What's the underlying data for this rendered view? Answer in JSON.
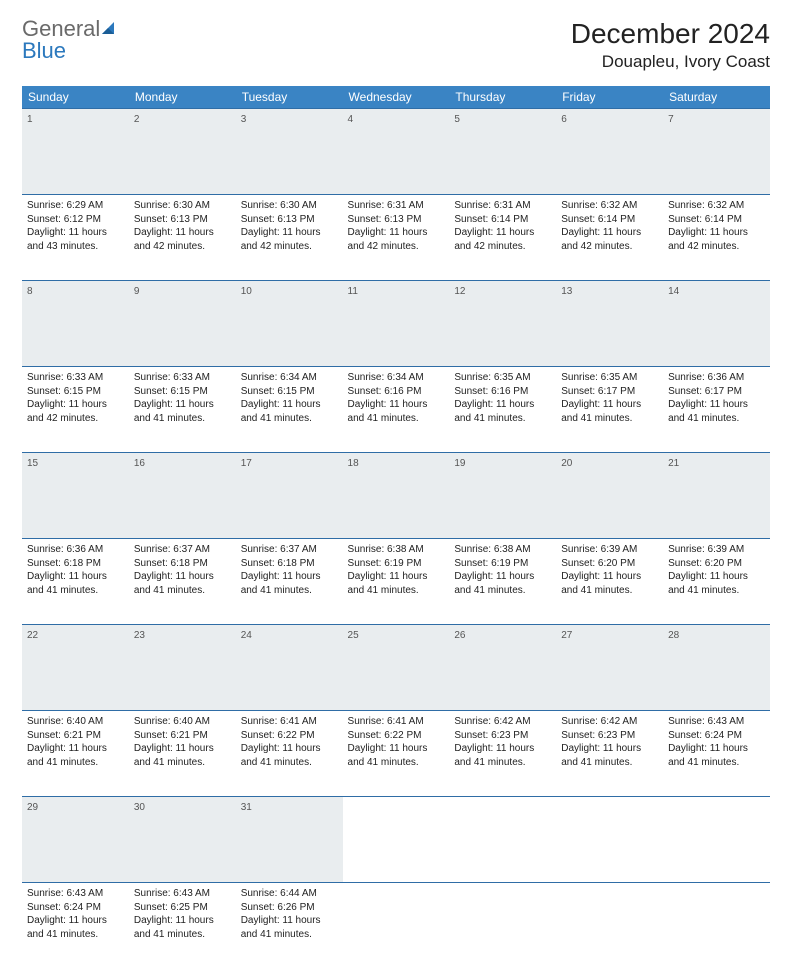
{
  "brand": {
    "word1": "General",
    "word2": "Blue"
  },
  "title": "December 2024",
  "location": "Douapleu, Ivory Coast",
  "colors": {
    "header_bg": "#3a84c4",
    "header_text": "#ffffff",
    "daynum_bg": "#e9edef",
    "border": "#2f6da6",
    "logo_gray": "#6a6a6a",
    "logo_blue": "#2b78bd"
  },
  "dayNames": [
    "Sunday",
    "Monday",
    "Tuesday",
    "Wednesday",
    "Thursday",
    "Friday",
    "Saturday"
  ],
  "layout": {
    "columns": 7,
    "rows": 5
  },
  "weeks": [
    [
      {
        "num": "1",
        "sunrise": "Sunrise: 6:29 AM",
        "sunset": "Sunset: 6:12 PM",
        "daylight": "Daylight: 11 hours and 43 minutes."
      },
      {
        "num": "2",
        "sunrise": "Sunrise: 6:30 AM",
        "sunset": "Sunset: 6:13 PM",
        "daylight": "Daylight: 11 hours and 42 minutes."
      },
      {
        "num": "3",
        "sunrise": "Sunrise: 6:30 AM",
        "sunset": "Sunset: 6:13 PM",
        "daylight": "Daylight: 11 hours and 42 minutes."
      },
      {
        "num": "4",
        "sunrise": "Sunrise: 6:31 AM",
        "sunset": "Sunset: 6:13 PM",
        "daylight": "Daylight: 11 hours and 42 minutes."
      },
      {
        "num": "5",
        "sunrise": "Sunrise: 6:31 AM",
        "sunset": "Sunset: 6:14 PM",
        "daylight": "Daylight: 11 hours and 42 minutes."
      },
      {
        "num": "6",
        "sunrise": "Sunrise: 6:32 AM",
        "sunset": "Sunset: 6:14 PM",
        "daylight": "Daylight: 11 hours and 42 minutes."
      },
      {
        "num": "7",
        "sunrise": "Sunrise: 6:32 AM",
        "sunset": "Sunset: 6:14 PM",
        "daylight": "Daylight: 11 hours and 42 minutes."
      }
    ],
    [
      {
        "num": "8",
        "sunrise": "Sunrise: 6:33 AM",
        "sunset": "Sunset: 6:15 PM",
        "daylight": "Daylight: 11 hours and 42 minutes."
      },
      {
        "num": "9",
        "sunrise": "Sunrise: 6:33 AM",
        "sunset": "Sunset: 6:15 PM",
        "daylight": "Daylight: 11 hours and 41 minutes."
      },
      {
        "num": "10",
        "sunrise": "Sunrise: 6:34 AM",
        "sunset": "Sunset: 6:15 PM",
        "daylight": "Daylight: 11 hours and 41 minutes."
      },
      {
        "num": "11",
        "sunrise": "Sunrise: 6:34 AM",
        "sunset": "Sunset: 6:16 PM",
        "daylight": "Daylight: 11 hours and 41 minutes."
      },
      {
        "num": "12",
        "sunrise": "Sunrise: 6:35 AM",
        "sunset": "Sunset: 6:16 PM",
        "daylight": "Daylight: 11 hours and 41 minutes."
      },
      {
        "num": "13",
        "sunrise": "Sunrise: 6:35 AM",
        "sunset": "Sunset: 6:17 PM",
        "daylight": "Daylight: 11 hours and 41 minutes."
      },
      {
        "num": "14",
        "sunrise": "Sunrise: 6:36 AM",
        "sunset": "Sunset: 6:17 PM",
        "daylight": "Daylight: 11 hours and 41 minutes."
      }
    ],
    [
      {
        "num": "15",
        "sunrise": "Sunrise: 6:36 AM",
        "sunset": "Sunset: 6:18 PM",
        "daylight": "Daylight: 11 hours and 41 minutes."
      },
      {
        "num": "16",
        "sunrise": "Sunrise: 6:37 AM",
        "sunset": "Sunset: 6:18 PM",
        "daylight": "Daylight: 11 hours and 41 minutes."
      },
      {
        "num": "17",
        "sunrise": "Sunrise: 6:37 AM",
        "sunset": "Sunset: 6:18 PM",
        "daylight": "Daylight: 11 hours and 41 minutes."
      },
      {
        "num": "18",
        "sunrise": "Sunrise: 6:38 AM",
        "sunset": "Sunset: 6:19 PM",
        "daylight": "Daylight: 11 hours and 41 minutes."
      },
      {
        "num": "19",
        "sunrise": "Sunrise: 6:38 AM",
        "sunset": "Sunset: 6:19 PM",
        "daylight": "Daylight: 11 hours and 41 minutes."
      },
      {
        "num": "20",
        "sunrise": "Sunrise: 6:39 AM",
        "sunset": "Sunset: 6:20 PM",
        "daylight": "Daylight: 11 hours and 41 minutes."
      },
      {
        "num": "21",
        "sunrise": "Sunrise: 6:39 AM",
        "sunset": "Sunset: 6:20 PM",
        "daylight": "Daylight: 11 hours and 41 minutes."
      }
    ],
    [
      {
        "num": "22",
        "sunrise": "Sunrise: 6:40 AM",
        "sunset": "Sunset: 6:21 PM",
        "daylight": "Daylight: 11 hours and 41 minutes."
      },
      {
        "num": "23",
        "sunrise": "Sunrise: 6:40 AM",
        "sunset": "Sunset: 6:21 PM",
        "daylight": "Daylight: 11 hours and 41 minutes."
      },
      {
        "num": "24",
        "sunrise": "Sunrise: 6:41 AM",
        "sunset": "Sunset: 6:22 PM",
        "daylight": "Daylight: 11 hours and 41 minutes."
      },
      {
        "num": "25",
        "sunrise": "Sunrise: 6:41 AM",
        "sunset": "Sunset: 6:22 PM",
        "daylight": "Daylight: 11 hours and 41 minutes."
      },
      {
        "num": "26",
        "sunrise": "Sunrise: 6:42 AM",
        "sunset": "Sunset: 6:23 PM",
        "daylight": "Daylight: 11 hours and 41 minutes."
      },
      {
        "num": "27",
        "sunrise": "Sunrise: 6:42 AM",
        "sunset": "Sunset: 6:23 PM",
        "daylight": "Daylight: 11 hours and 41 minutes."
      },
      {
        "num": "28",
        "sunrise": "Sunrise: 6:43 AM",
        "sunset": "Sunset: 6:24 PM",
        "daylight": "Daylight: 11 hours and 41 minutes."
      }
    ],
    [
      {
        "num": "29",
        "sunrise": "Sunrise: 6:43 AM",
        "sunset": "Sunset: 6:24 PM",
        "daylight": "Daylight: 11 hours and 41 minutes."
      },
      {
        "num": "30",
        "sunrise": "Sunrise: 6:43 AM",
        "sunset": "Sunset: 6:25 PM",
        "daylight": "Daylight: 11 hours and 41 minutes."
      },
      {
        "num": "31",
        "sunrise": "Sunrise: 6:44 AM",
        "sunset": "Sunset: 6:26 PM",
        "daylight": "Daylight: 11 hours and 41 minutes."
      },
      null,
      null,
      null,
      null
    ]
  ]
}
